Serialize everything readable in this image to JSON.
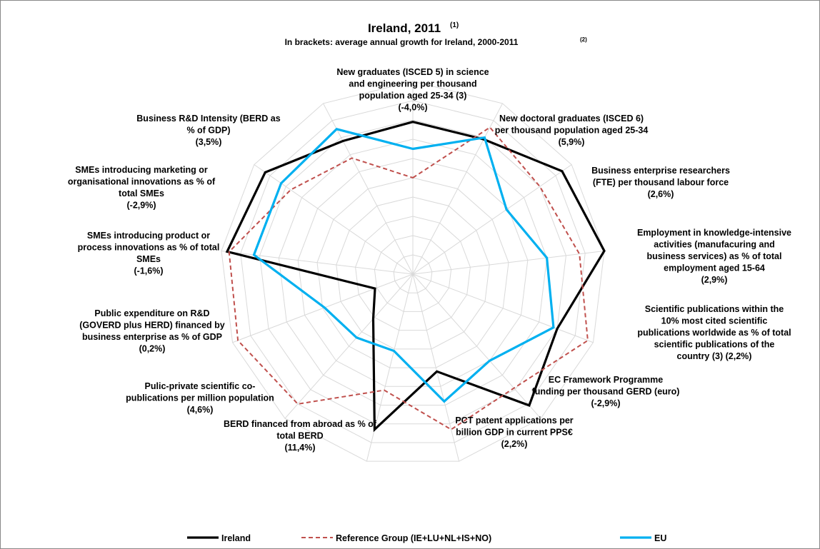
{
  "chart_data": {
    "type": "radar",
    "title": "Ireland, 2011",
    "title_note": "(1)",
    "subtitle": "In brackets: average annual growth for Ireland, 2000-2011",
    "subtitle_note": "(2)",
    "categories": [
      [
        "New graduates (ISCED 5) in science",
        "and engineering per thousand",
        "population aged 25-34 (3)",
        "(-4,0%)"
      ],
      [
        "New doctoral graduates (ISCED 6)",
        "per thousand population aged 25-34",
        "(5,9%)"
      ],
      [
        "Business enterprise researchers",
        "(FTE) per thousand labour force",
        "(2,6%)"
      ],
      [
        "Employment in knowledge-intensive",
        "activities (manufacuring and",
        "business services) as % of total",
        "employment aged 15-64",
        "(2,9%)"
      ],
      [
        "Scientific publications within the",
        "10% most cited scientific",
        "publications worldwide as % of total",
        "scientific publications of the",
        "country (3) (2,2%)"
      ],
      [
        "EC Framework Programme",
        "funding per thousand GERD (euro)",
        "(-2,9%)"
      ],
      [
        "PCT patent applications per",
        "billion GDP in current PPS€",
        "(2,2%)"
      ],
      [
        "BERD financed from abroad as % of",
        "total BERD",
        "(11,4%)"
      ],
      [
        "Pulic-private scientific co-",
        "publications per million population",
        "(4,6%)"
      ],
      [
        "Public expenditure on R&D",
        "(GOVERD plus HERD) financed by",
        "business enterprise as % of GDP",
        "(0,2%)"
      ],
      [
        "SMEs introducing product or",
        "process innovations as % of total",
        "SMEs",
        "(-1,6%)"
      ],
      [
        "SMEs introducing marketing or",
        "organisational innovations as % of",
        "total SMEs",
        "(-2,9%)"
      ],
      [
        "Business R&D Intensity (BERD as",
        "% of GDP)",
        "(3,5%)"
      ]
    ],
    "series": [
      {
        "name": "Ireland",
        "color": "#000000",
        "dash": false,
        "values": [
          0.79,
          0.79,
          0.94,
          1.0,
          0.8,
          0.91,
          0.52,
          0.83,
          0.31,
          0.21,
          0.97,
          0.93,
          0.78
        ]
      },
      {
        "name": "Reference Group (IE+LU+NL+IS+NO)",
        "color": "#c0504d",
        "dash": true,
        "values": [
          0.5,
          0.86,
          0.8,
          0.87,
          0.97,
          0.79,
          0.83,
          0.62,
          0.9,
          0.97,
          0.96,
          0.77,
          0.68
        ]
      },
      {
        "name": "EU",
        "color": "#00b0f0",
        "dash": false,
        "values": [
          0.65,
          0.8,
          0.59,
          0.7,
          0.78,
          0.6,
          0.68,
          0.41,
          0.44,
          0.49,
          0.83,
          0.83,
          0.85
        ]
      }
    ],
    "ylim": [
      0,
      1
    ],
    "yticks": [
      0.1,
      0.2,
      0.3,
      0.4,
      0.5,
      0.6,
      0.7,
      0.8,
      0.9,
      1.0
    ],
    "grid": true
  }
}
